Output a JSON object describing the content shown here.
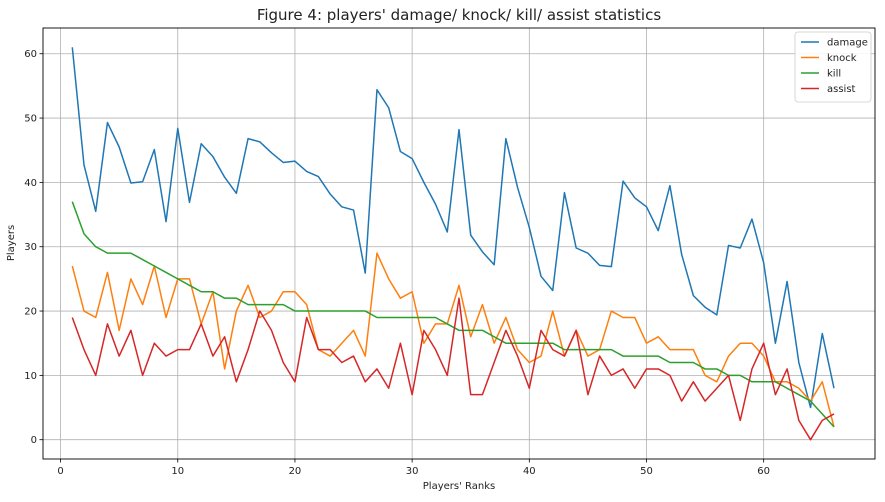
{
  "chart_data": {
    "type": "line",
    "title": "Figure 4: players' damage/ knock/ kill/ assist statistics",
    "xlabel": "Players' Ranks",
    "ylabel": "Players",
    "xlim": [
      -1.5,
      69.5
    ],
    "ylim": [
      -3,
      64
    ],
    "xticks": [
      0,
      10,
      20,
      30,
      40,
      50,
      60
    ],
    "yticks": [
      0,
      10,
      20,
      30,
      40,
      50,
      60
    ],
    "grid": true,
    "legend_position": "top-right",
    "x": [
      1,
      2,
      3,
      4,
      5,
      6,
      7,
      8,
      9,
      10,
      11,
      12,
      13,
      14,
      15,
      16,
      17,
      18,
      19,
      20,
      21,
      22,
      23,
      24,
      25,
      26,
      27,
      28,
      29,
      30,
      31,
      32,
      33,
      34,
      35,
      36,
      37,
      38,
      39,
      40,
      41,
      42,
      43,
      44,
      45,
      46,
      47,
      48,
      49,
      50,
      51,
      52,
      53,
      54,
      55,
      56,
      57,
      58,
      59,
      60,
      61,
      62,
      63,
      64,
      65,
      66
    ],
    "series": [
      {
        "name": "damage",
        "color": "#1f77b4",
        "values": [
          61,
          42.7,
          35.5,
          49.3,
          45.5,
          39.9,
          40.1,
          45.1,
          33.9,
          48.4,
          36.9,
          46,
          44,
          40.8,
          38.3,
          46.8,
          46.3,
          44.6,
          43.1,
          43.3,
          41.7,
          40.9,
          38.2,
          36.2,
          35.7,
          25.9,
          54.4,
          51.6,
          44.8,
          43.7,
          40,
          36.6,
          32.3,
          48.2,
          31.8,
          29.2,
          27.2,
          46.8,
          39.2,
          33,
          25.4,
          23.2,
          38.4,
          29.8,
          29,
          27.1,
          26.9,
          40.2,
          37.6,
          36.2,
          32.5,
          39.5,
          28.8,
          22.4,
          20.6,
          19.4,
          30.2,
          29.8,
          34.3,
          27.5,
          15,
          24.6,
          12,
          5,
          16.5,
          8
        ]
      },
      {
        "name": "knock",
        "color": "#ff7f0e",
        "values": [
          27,
          20,
          19,
          26,
          17,
          25,
          21,
          27,
          19,
          25,
          25,
          18,
          23,
          11,
          20,
          24,
          19,
          20,
          23,
          23,
          21,
          14,
          13,
          15,
          17,
          13,
          29,
          25,
          22,
          23,
          15,
          18,
          18,
          24,
          16,
          21,
          15,
          19,
          14,
          12,
          13,
          20,
          13,
          17,
          13,
          14,
          20,
          19,
          19,
          15,
          16,
          14,
          14,
          14,
          10,
          9,
          13,
          15,
          15,
          13,
          9,
          9,
          8,
          6,
          9,
          2
        ]
      },
      {
        "name": "kill",
        "color": "#2ca02c",
        "values": [
          37,
          32,
          30,
          29,
          29,
          29,
          28,
          27,
          26,
          25,
          24,
          23,
          23,
          22,
          22,
          21,
          21,
          21,
          21,
          20,
          20,
          20,
          20,
          20,
          20,
          20,
          19,
          19,
          19,
          19,
          19,
          19,
          18,
          17,
          17,
          17,
          16,
          15,
          15,
          15,
          15,
          15,
          14,
          14,
          14,
          14,
          14,
          13,
          13,
          13,
          13,
          12,
          12,
          12,
          11,
          11,
          10,
          10,
          9,
          9,
          9,
          8,
          7,
          6,
          4,
          2
        ]
      },
      {
        "name": "assist",
        "color": "#d62728",
        "values": [
          19,
          14,
          10,
          18,
          13,
          17,
          10,
          15,
          13,
          14,
          14,
          18,
          13,
          16,
          9,
          14,
          20,
          17,
          12,
          9,
          19,
          14,
          14,
          12,
          13,
          9,
          11,
          8,
          15,
          7,
          17,
          14,
          10,
          22,
          7,
          7,
          12,
          17,
          13,
          8,
          17,
          14,
          13,
          17,
          7,
          13,
          10,
          11,
          8,
          11,
          11,
          10,
          6,
          9,
          6,
          8,
          10,
          3,
          11,
          15,
          7,
          11,
          3,
          0,
          3,
          4
        ]
      }
    ]
  }
}
